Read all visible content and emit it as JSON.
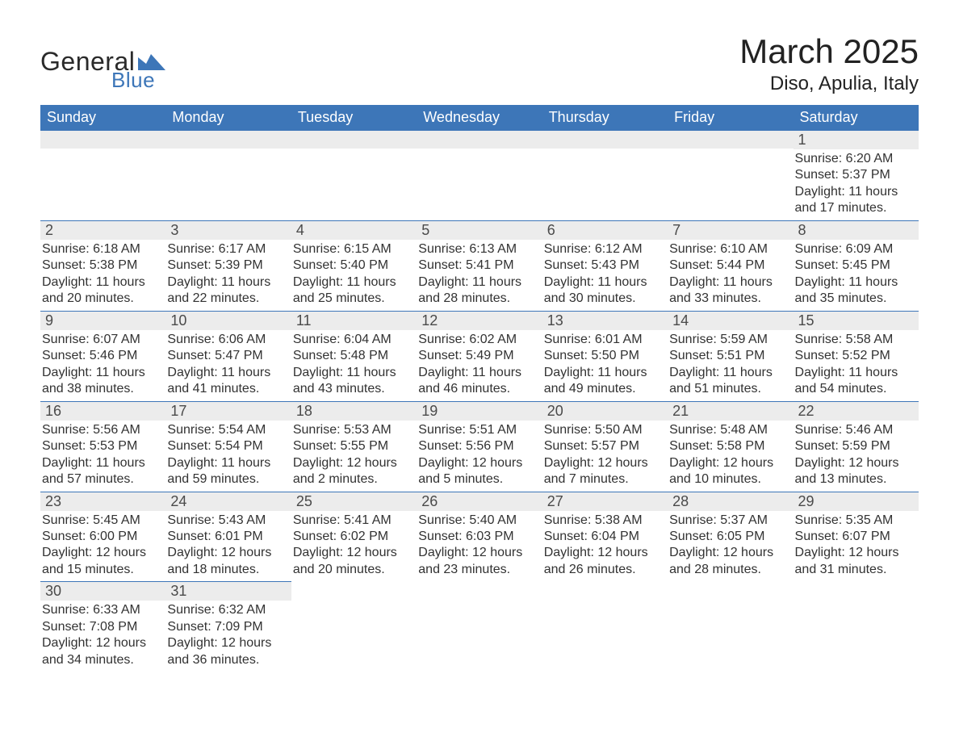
{
  "brand": {
    "word1": "General",
    "word2": "Blue",
    "tri_color": "#3d76b8"
  },
  "title": "March 2025",
  "location": "Diso, Apulia, Italy",
  "colors": {
    "header_bg": "#3d76b8",
    "header_text": "#ffffff",
    "daynum_bg": "#ececec",
    "text": "#323232",
    "row_divider": "#3d76b8"
  },
  "day_headers": [
    "Sunday",
    "Monday",
    "Tuesday",
    "Wednesday",
    "Thursday",
    "Friday",
    "Saturday"
  ],
  "weeks": [
    [
      null,
      null,
      null,
      null,
      null,
      null,
      {
        "n": "1",
        "sr": "Sunrise: 6:20 AM",
        "ss": "Sunset: 5:37 PM",
        "dl": "Daylight: 11 hours and 17 minutes."
      }
    ],
    [
      {
        "n": "2",
        "sr": "Sunrise: 6:18 AM",
        "ss": "Sunset: 5:38 PM",
        "dl": "Daylight: 11 hours and 20 minutes."
      },
      {
        "n": "3",
        "sr": "Sunrise: 6:17 AM",
        "ss": "Sunset: 5:39 PM",
        "dl": "Daylight: 11 hours and 22 minutes."
      },
      {
        "n": "4",
        "sr": "Sunrise: 6:15 AM",
        "ss": "Sunset: 5:40 PM",
        "dl": "Daylight: 11 hours and 25 minutes."
      },
      {
        "n": "5",
        "sr": "Sunrise: 6:13 AM",
        "ss": "Sunset: 5:41 PM",
        "dl": "Daylight: 11 hours and 28 minutes."
      },
      {
        "n": "6",
        "sr": "Sunrise: 6:12 AM",
        "ss": "Sunset: 5:43 PM",
        "dl": "Daylight: 11 hours and 30 minutes."
      },
      {
        "n": "7",
        "sr": "Sunrise: 6:10 AM",
        "ss": "Sunset: 5:44 PM",
        "dl": "Daylight: 11 hours and 33 minutes."
      },
      {
        "n": "8",
        "sr": "Sunrise: 6:09 AM",
        "ss": "Sunset: 5:45 PM",
        "dl": "Daylight: 11 hours and 35 minutes."
      }
    ],
    [
      {
        "n": "9",
        "sr": "Sunrise: 6:07 AM",
        "ss": "Sunset: 5:46 PM",
        "dl": "Daylight: 11 hours and 38 minutes."
      },
      {
        "n": "10",
        "sr": "Sunrise: 6:06 AM",
        "ss": "Sunset: 5:47 PM",
        "dl": "Daylight: 11 hours and 41 minutes."
      },
      {
        "n": "11",
        "sr": "Sunrise: 6:04 AM",
        "ss": "Sunset: 5:48 PM",
        "dl": "Daylight: 11 hours and 43 minutes."
      },
      {
        "n": "12",
        "sr": "Sunrise: 6:02 AM",
        "ss": "Sunset: 5:49 PM",
        "dl": "Daylight: 11 hours and 46 minutes."
      },
      {
        "n": "13",
        "sr": "Sunrise: 6:01 AM",
        "ss": "Sunset: 5:50 PM",
        "dl": "Daylight: 11 hours and 49 minutes."
      },
      {
        "n": "14",
        "sr": "Sunrise: 5:59 AM",
        "ss": "Sunset: 5:51 PM",
        "dl": "Daylight: 11 hours and 51 minutes."
      },
      {
        "n": "15",
        "sr": "Sunrise: 5:58 AM",
        "ss": "Sunset: 5:52 PM",
        "dl": "Daylight: 11 hours and 54 minutes."
      }
    ],
    [
      {
        "n": "16",
        "sr": "Sunrise: 5:56 AM",
        "ss": "Sunset: 5:53 PM",
        "dl": "Daylight: 11 hours and 57 minutes."
      },
      {
        "n": "17",
        "sr": "Sunrise: 5:54 AM",
        "ss": "Sunset: 5:54 PM",
        "dl": "Daylight: 11 hours and 59 minutes."
      },
      {
        "n": "18",
        "sr": "Sunrise: 5:53 AM",
        "ss": "Sunset: 5:55 PM",
        "dl": "Daylight: 12 hours and 2 minutes."
      },
      {
        "n": "19",
        "sr": "Sunrise: 5:51 AM",
        "ss": "Sunset: 5:56 PM",
        "dl": "Daylight: 12 hours and 5 minutes."
      },
      {
        "n": "20",
        "sr": "Sunrise: 5:50 AM",
        "ss": "Sunset: 5:57 PM",
        "dl": "Daylight: 12 hours and 7 minutes."
      },
      {
        "n": "21",
        "sr": "Sunrise: 5:48 AM",
        "ss": "Sunset: 5:58 PM",
        "dl": "Daylight: 12 hours and 10 minutes."
      },
      {
        "n": "22",
        "sr": "Sunrise: 5:46 AM",
        "ss": "Sunset: 5:59 PM",
        "dl": "Daylight: 12 hours and 13 minutes."
      }
    ],
    [
      {
        "n": "23",
        "sr": "Sunrise: 5:45 AM",
        "ss": "Sunset: 6:00 PM",
        "dl": "Daylight: 12 hours and 15 minutes."
      },
      {
        "n": "24",
        "sr": "Sunrise: 5:43 AM",
        "ss": "Sunset: 6:01 PM",
        "dl": "Daylight: 12 hours and 18 minutes."
      },
      {
        "n": "25",
        "sr": "Sunrise: 5:41 AM",
        "ss": "Sunset: 6:02 PM",
        "dl": "Daylight: 12 hours and 20 minutes."
      },
      {
        "n": "26",
        "sr": "Sunrise: 5:40 AM",
        "ss": "Sunset: 6:03 PM",
        "dl": "Daylight: 12 hours and 23 minutes."
      },
      {
        "n": "27",
        "sr": "Sunrise: 5:38 AM",
        "ss": "Sunset: 6:04 PM",
        "dl": "Daylight: 12 hours and 26 minutes."
      },
      {
        "n": "28",
        "sr": "Sunrise: 5:37 AM",
        "ss": "Sunset: 6:05 PM",
        "dl": "Daylight: 12 hours and 28 minutes."
      },
      {
        "n": "29",
        "sr": "Sunrise: 5:35 AM",
        "ss": "Sunset: 6:07 PM",
        "dl": "Daylight: 12 hours and 31 minutes."
      }
    ],
    [
      {
        "n": "30",
        "sr": "Sunrise: 6:33 AM",
        "ss": "Sunset: 7:08 PM",
        "dl": "Daylight: 12 hours and 34 minutes."
      },
      {
        "n": "31",
        "sr": "Sunrise: 6:32 AM",
        "ss": "Sunset: 7:09 PM",
        "dl": "Daylight: 12 hours and 36 minutes."
      },
      null,
      null,
      null,
      null,
      null
    ]
  ]
}
